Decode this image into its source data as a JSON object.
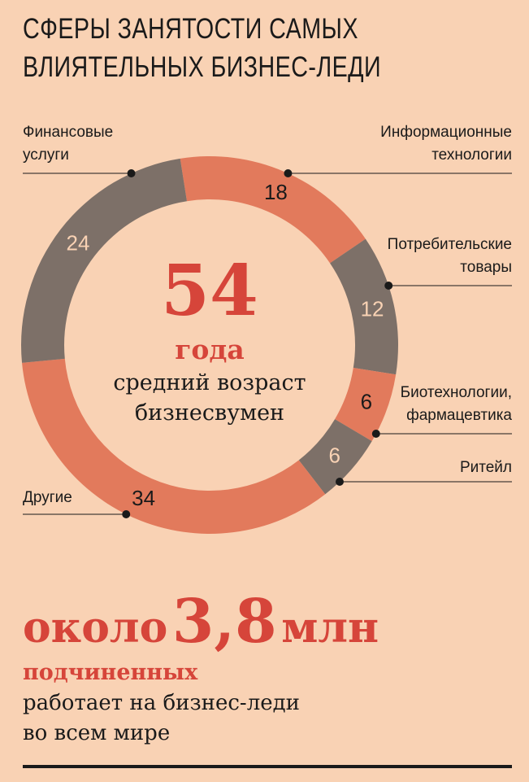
{
  "title": {
    "line1": "СФЕРЫ ЗАНЯТОСТИ САМЫХ",
    "line2": "ВЛИЯТЕЛЬНЫХ БИЗНЕС-ЛЕДИ"
  },
  "chart_data": {
    "type": "pie",
    "categories": [
      "Информационные технологии",
      "Потребительские товары",
      "Биотехнологии, фармацевтика",
      "Ритейл",
      "Другие",
      "Финансовые услуги"
    ],
    "values": [
      18,
      12,
      6,
      6,
      34,
      24
    ],
    "colors": [
      "#e27a5c",
      "#7d7068",
      "#e27a5c",
      "#7d7068",
      "#e27a5c",
      "#7d7068"
    ],
    "label_lines": [
      [
        "Информационные",
        "технологии"
      ],
      [
        "Потребительские",
        "товары"
      ],
      [
        "Биотехнологии,",
        "фармацевтика"
      ],
      [
        "Ритейл"
      ],
      [
        "Другие"
      ],
      [
        "Финансовые",
        "услуги"
      ]
    ],
    "value_colors": [
      "#1a1a1a",
      "#f9d2b4",
      "#1a1a1a",
      "#f9d2b4",
      "#1a1a1a",
      "#f9d2b4"
    ]
  },
  "center": {
    "number": "54",
    "unit": "года",
    "desc_line1": "средний возраст",
    "desc_line2": "бизнесвумен"
  },
  "bottom": {
    "prefix": "около",
    "number": "3,8",
    "unit": "млн",
    "bold_line": "подчиненных",
    "line1": "работает на бизнес-леди",
    "line2": "во всем мире"
  }
}
